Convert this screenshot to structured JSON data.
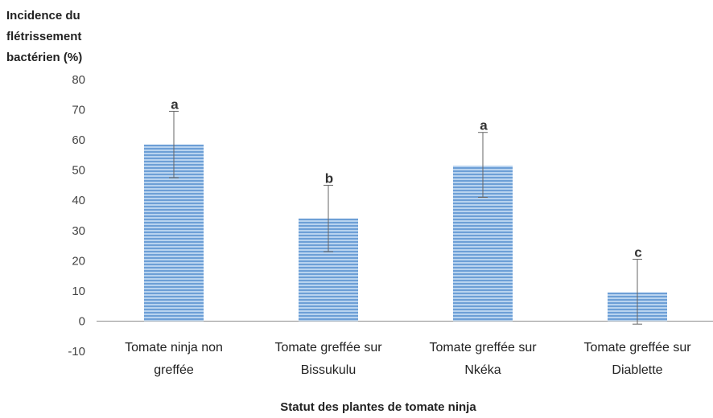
{
  "chart_data": {
    "type": "bar",
    "ylabel": [
      "Incidence du",
      "flétrissement",
      "bactérien (%)"
    ],
    "xlabel": "Statut des plantes de tomate ninja",
    "ylim": [
      -10,
      80
    ],
    "yticks": [
      80,
      70,
      60,
      50,
      40,
      30,
      20,
      10,
      0,
      -10
    ],
    "grid": false,
    "categories": [
      [
        "Tomate ninja non",
        "greffée"
      ],
      [
        "Tomate greffée sur",
        "Bissukulu"
      ],
      [
        "Tomate greffée sur",
        "Nkéka"
      ],
      [
        "Tomate greffée sur",
        "Diablette"
      ]
    ],
    "values": [
      58.5,
      34,
      51.5,
      9.5
    ],
    "error_low": [
      47.5,
      23,
      41,
      -1
    ],
    "error_high": [
      69.5,
      45,
      62.5,
      20.5
    ],
    "significance": [
      "a",
      "b",
      "a",
      "c"
    ],
    "colors": {
      "bar": "#6d9fd6",
      "bar_stripe": "#b8d3ef",
      "axis": "#8c8c8c",
      "error": "#666666"
    }
  }
}
